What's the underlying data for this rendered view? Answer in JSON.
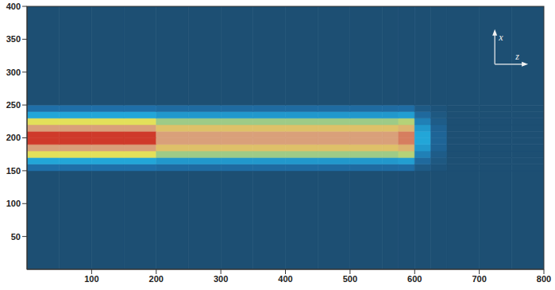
{
  "chart_data": {
    "type": "heatmap",
    "xlim": [
      0,
      800
    ],
    "ylim": [
      0,
      400
    ],
    "xticks": [
      100,
      200,
      300,
      400,
      500,
      600,
      700,
      800
    ],
    "yticks": [
      50,
      100,
      150,
      200,
      250,
      300,
      350,
      400
    ],
    "grid": false,
    "axis_indicator": {
      "up": "x",
      "right": "z"
    },
    "zlim": [
      0,
      1
    ],
    "x_edges": [
      0,
      50,
      100,
      150,
      200,
      250,
      300,
      350,
      400,
      450,
      500,
      550,
      575,
      600,
      625,
      650,
      700,
      750,
      800
    ],
    "y_edges": [
      0,
      150,
      160,
      170,
      180,
      190,
      200,
      210,
      220,
      230,
      240,
      250,
      400
    ],
    "cells": [
      [
        0,
        0,
        0,
        0,
        0,
        0,
        0,
        0,
        0,
        0,
        0,
        0,
        0,
        0,
        0,
        0,
        0,
        0
      ],
      [
        0.15,
        0.15,
        0.15,
        0.15,
        0.13,
        0.13,
        0.13,
        0.13,
        0.13,
        0.13,
        0.13,
        0.13,
        0.14,
        0.05,
        0.02,
        0,
        0,
        0
      ],
      [
        0.35,
        0.35,
        0.35,
        0.35,
        0.3,
        0.3,
        0.3,
        0.3,
        0.3,
        0.3,
        0.3,
        0.3,
        0.32,
        0.12,
        0.04,
        0,
        0,
        0
      ],
      [
        0.6,
        0.6,
        0.6,
        0.6,
        0.51,
        0.51,
        0.51,
        0.51,
        0.51,
        0.51,
        0.51,
        0.51,
        0.54,
        0.21,
        0.06,
        0,
        0,
        0
      ],
      [
        0.85,
        0.85,
        0.85,
        0.85,
        0.72,
        0.72,
        0.72,
        0.72,
        0.72,
        0.72,
        0.72,
        0.72,
        0.77,
        0.3,
        0.09,
        0,
        0,
        0
      ],
      [
        1,
        1,
        1,
        1,
        0.85,
        0.85,
        0.85,
        0.85,
        0.85,
        0.85,
        0.85,
        0.85,
        0.9,
        0.35,
        0.1,
        0,
        0,
        0
      ],
      [
        1,
        1,
        1,
        1,
        0.85,
        0.85,
        0.85,
        0.85,
        0.85,
        0.85,
        0.85,
        0.85,
        0.9,
        0.35,
        0.1,
        0,
        0,
        0
      ],
      [
        0.85,
        0.85,
        0.85,
        0.85,
        0.72,
        0.72,
        0.72,
        0.72,
        0.72,
        0.72,
        0.72,
        0.72,
        0.77,
        0.3,
        0.09,
        0,
        0,
        0
      ],
      [
        0.6,
        0.6,
        0.6,
        0.6,
        0.51,
        0.51,
        0.51,
        0.51,
        0.51,
        0.51,
        0.51,
        0.51,
        0.54,
        0.21,
        0.06,
        0,
        0,
        0
      ],
      [
        0.35,
        0.35,
        0.35,
        0.35,
        0.3,
        0.3,
        0.3,
        0.3,
        0.3,
        0.3,
        0.3,
        0.3,
        0.32,
        0.12,
        0.04,
        0,
        0,
        0
      ],
      [
        0.15,
        0.15,
        0.15,
        0.15,
        0.13,
        0.13,
        0.13,
        0.13,
        0.13,
        0.13,
        0.13,
        0.13,
        0.14,
        0.05,
        0.02,
        0,
        0,
        0
      ],
      [
        0,
        0,
        0,
        0,
        0,
        0,
        0,
        0,
        0,
        0,
        0,
        0,
        0,
        0,
        0,
        0,
        0,
        0
      ]
    ]
  }
}
